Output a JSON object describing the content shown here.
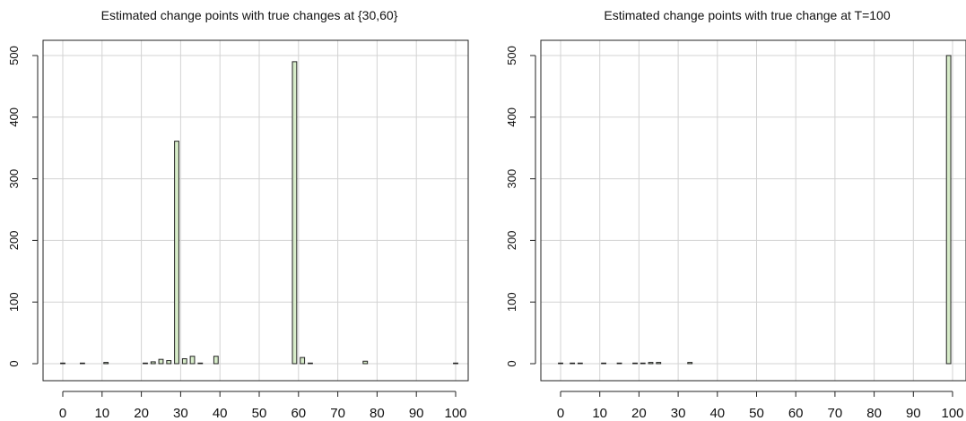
{
  "colors": {
    "bar_fill": "#d7ecc9",
    "bar_stroke": "#222222",
    "grid": "#d3d3d3"
  },
  "chart_data": [
    {
      "type": "bar",
      "title": "Estimated change points with true changes at {30,60}",
      "xlabel": "",
      "ylabel": "",
      "xlim": [
        0,
        100
      ],
      "ylim": [
        0,
        500
      ],
      "x_ticks": [
        "0",
        "10",
        "20",
        "30",
        "40",
        "50",
        "60",
        "70",
        "80",
        "90",
        "100"
      ],
      "y_ticks": [
        "0",
        "100",
        "200",
        "300",
        "400",
        "500"
      ],
      "grid": true,
      "bar_width": 1.1,
      "x": [
        0,
        5,
        11,
        21,
        23,
        25,
        27,
        29,
        31,
        33,
        35,
        39,
        59,
        61,
        63,
        77,
        100
      ],
      "values": [
        1,
        1,
        2,
        1,
        3,
        7,
        5,
        361,
        8,
        12,
        1,
        12,
        490,
        10,
        1,
        4,
        1
      ]
    },
    {
      "type": "bar",
      "title": "Estimated change points with true change at T=100",
      "xlabel": "",
      "ylabel": "",
      "xlim": [
        0,
        100
      ],
      "ylim": [
        0,
        500
      ],
      "x_ticks": [
        "0",
        "10",
        "20",
        "30",
        "40",
        "50",
        "60",
        "70",
        "80",
        "90",
        "100"
      ],
      "y_ticks": [
        "0",
        "100",
        "200",
        "300",
        "400",
        "500"
      ],
      "grid": true,
      "bar_width": 1.1,
      "x": [
        0,
        3,
        5,
        11,
        15,
        19,
        21,
        23,
        25,
        33,
        99
      ],
      "values": [
        1,
        1,
        1,
        1,
        1,
        1,
        1,
        2,
        2,
        2,
        500
      ]
    }
  ]
}
